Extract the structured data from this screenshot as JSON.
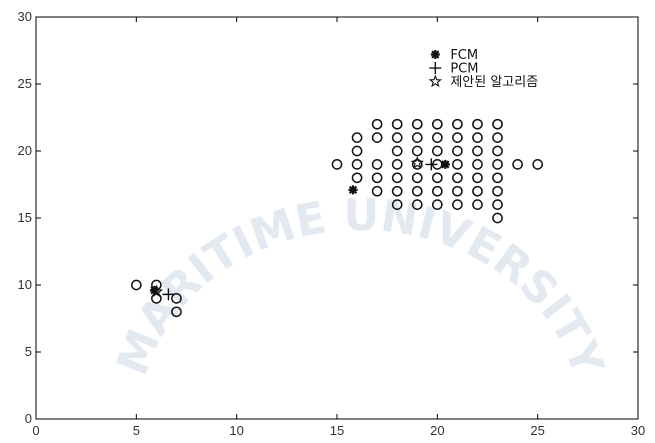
{
  "chart_data": {
    "type": "scatter",
    "title": "",
    "xlabel": "",
    "ylabel": "",
    "xlim": [
      0,
      30
    ],
    "ylim": [
      0,
      30
    ],
    "xticks": [
      0,
      5,
      10,
      15,
      20,
      25,
      30
    ],
    "yticks": [
      0,
      5,
      10,
      15,
      20,
      25,
      30
    ],
    "grid": false,
    "legend_position": "top-right",
    "series": [
      {
        "name": "",
        "marker": "circle",
        "points": [
          [
            5,
            10
          ],
          [
            6,
            10
          ],
          [
            6,
            9
          ],
          [
            7,
            9
          ],
          [
            7,
            8
          ],
          [
            17,
            22
          ],
          [
            18,
            22
          ],
          [
            19,
            22
          ],
          [
            20,
            22
          ],
          [
            21,
            22
          ],
          [
            22,
            22
          ],
          [
            23,
            22
          ],
          [
            16,
            21
          ],
          [
            17,
            21
          ],
          [
            18,
            21
          ],
          [
            19,
            21
          ],
          [
            20,
            21
          ],
          [
            21,
            21
          ],
          [
            22,
            21
          ],
          [
            23,
            21
          ],
          [
            16,
            20
          ],
          [
            18,
            20
          ],
          [
            19,
            20
          ],
          [
            20,
            20
          ],
          [
            21,
            20
          ],
          [
            22,
            20
          ],
          [
            23,
            20
          ],
          [
            15,
            19
          ],
          [
            16,
            19
          ],
          [
            17,
            19
          ],
          [
            18,
            19
          ],
          [
            19,
            19
          ],
          [
            20,
            19
          ],
          [
            21,
            19
          ],
          [
            22,
            19
          ],
          [
            23,
            19
          ],
          [
            24,
            19
          ],
          [
            25,
            19
          ],
          [
            16,
            18
          ],
          [
            17,
            18
          ],
          [
            18,
            18
          ],
          [
            19,
            18
          ],
          [
            20,
            18
          ],
          [
            21,
            18
          ],
          [
            22,
            18
          ],
          [
            23,
            18
          ],
          [
            17,
            17
          ],
          [
            18,
            17
          ],
          [
            19,
            17
          ],
          [
            20,
            17
          ],
          [
            21,
            17
          ],
          [
            22,
            17
          ],
          [
            23,
            17
          ],
          [
            18,
            16
          ],
          [
            19,
            16
          ],
          [
            20,
            16
          ],
          [
            21,
            16
          ],
          [
            22,
            16
          ],
          [
            23,
            16
          ],
          [
            23,
            15
          ]
        ]
      },
      {
        "name": "FCM",
        "marker": "asterisk",
        "points": [
          [
            5.9,
            9.6
          ],
          [
            15.8,
            17.1
          ],
          [
            20.4,
            19.0
          ]
        ]
      },
      {
        "name": "PCM",
        "marker": "plus",
        "points": [
          [
            6.6,
            9.3
          ],
          [
            19.7,
            19.0
          ]
        ]
      },
      {
        "name": "제안된 알고리즘",
        "marker": "star",
        "points": [
          [
            6.0,
            9.5
          ],
          [
            19.0,
            19.1
          ]
        ]
      }
    ],
    "legend": [
      {
        "marker": "asterisk",
        "label": "FCM"
      },
      {
        "marker": "plus",
        "label": "PCM"
      },
      {
        "marker": "star",
        "label": "제안된 알고리즘"
      }
    ]
  },
  "watermark": {
    "text": "MARITIME UNIVERSITY",
    "color": "#b8c6da"
  }
}
